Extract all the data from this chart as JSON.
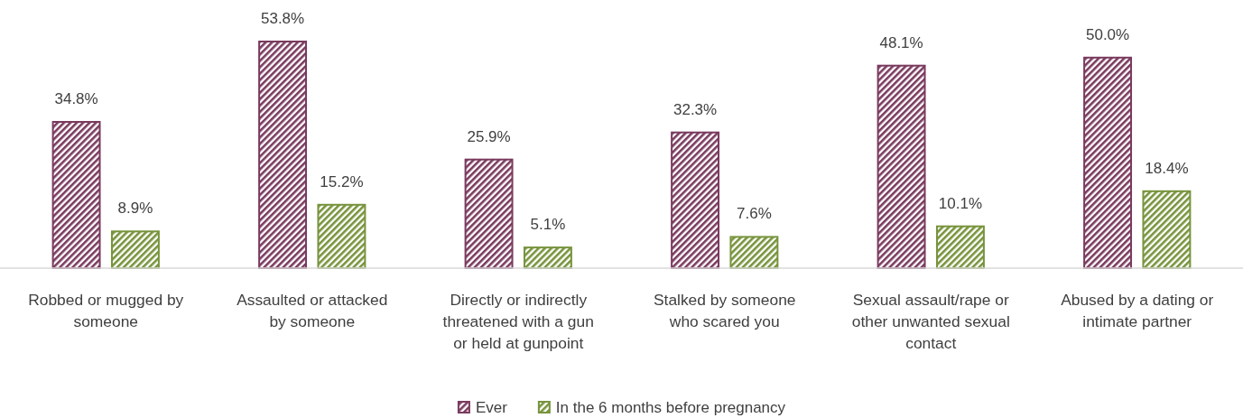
{
  "chart_data": {
    "type": "bar",
    "categories": [
      "Robbed or mugged by someone",
      "Assaulted or attacked by someone",
      "Directly or indirectly threatened with a gun or held at gunpoint",
      "Stalked by someone who scared you",
      "Sexual assault/rape or other unwanted sexual contact",
      "Abused by a dating or intimate partner"
    ],
    "series": [
      {
        "name": "Ever",
        "color": "#7a3a5e",
        "values": [
          34.8,
          53.8,
          25.9,
          32.3,
          48.1,
          50.0
        ],
        "value_labels": [
          "34.8%",
          "53.8%",
          "25.9%",
          "32.3%",
          "48.1%",
          "50.0%"
        ]
      },
      {
        "name": "In the 6 months before pregnancy",
        "color": "#77933c",
        "values": [
          8.9,
          15.2,
          5.1,
          7.6,
          10.1,
          18.4
        ],
        "value_labels": [
          "8.9%",
          "15.2%",
          "5.1%",
          "7.6%",
          "10.1%",
          "18.4%"
        ]
      }
    ],
    "tick_labels": "x",
    "legend": "bottom"
  }
}
